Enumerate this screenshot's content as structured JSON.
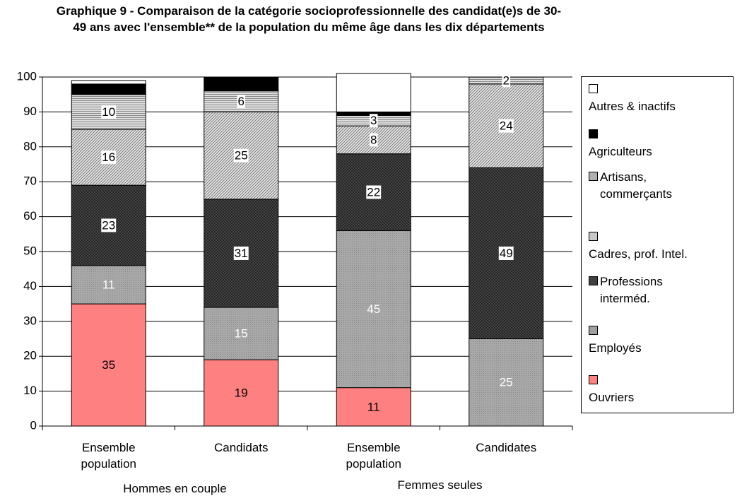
{
  "chart_data": {
    "type": "stacked-bar",
    "title": "Graphique 9 - Comparaison de la catégorie socioprofessionnelle des candidat(e)s de 30-49 ans avec l'ensemble** de la population du même âge dans les dix départements",
    "categories": [
      "Ensemble population",
      "Candidats",
      "Ensemble population",
      "Candidates"
    ],
    "group_labels": [
      "Hommes en couple",
      "Femmes seules"
    ],
    "ylim": [
      0,
      100
    ],
    "yticks": [
      0,
      10,
      20,
      30,
      40,
      50,
      60,
      70,
      80,
      90,
      100
    ],
    "grid": true,
    "series": [
      {
        "name": "Ouvriers",
        "color": "#ff8080",
        "values": [
          35,
          19,
          11,
          0
        ],
        "value_labels": [
          "35",
          "19",
          "11",
          null
        ]
      },
      {
        "name": "Employés",
        "color": "#a0a0a0",
        "values": [
          11,
          15,
          45,
          25
        ],
        "value_labels": [
          "11",
          "15",
          "45",
          "25"
        ]
      },
      {
        "name": "Professions interméd.",
        "color": "#404040",
        "values": [
          23,
          31,
          22,
          49
        ],
        "value_labels": [
          "23",
          "31",
          "22",
          "49"
        ]
      },
      {
        "name": "Cadres, prof. Intel.",
        "color": "#c8c8c8",
        "values": [
          16,
          25,
          8,
          24
        ],
        "value_labels": [
          "16",
          "25",
          "8",
          "24"
        ]
      },
      {
        "name": "Artisans, commerçants",
        "color": "#b0b0b0",
        "values": [
          10,
          6,
          3,
          2
        ],
        "value_labels": [
          "10",
          "6",
          "3",
          "2"
        ]
      },
      {
        "name": "Agriculteurs",
        "color": "#000000",
        "values": [
          3,
          4,
          1,
          0
        ],
        "value_labels": [
          null,
          null,
          null,
          null
        ]
      },
      {
        "name": "Autres & inactifs",
        "color": "#ffffff",
        "values": [
          1,
          0,
          11,
          0
        ],
        "value_labels": [
          null,
          null,
          null,
          null
        ]
      }
    ]
  }
}
